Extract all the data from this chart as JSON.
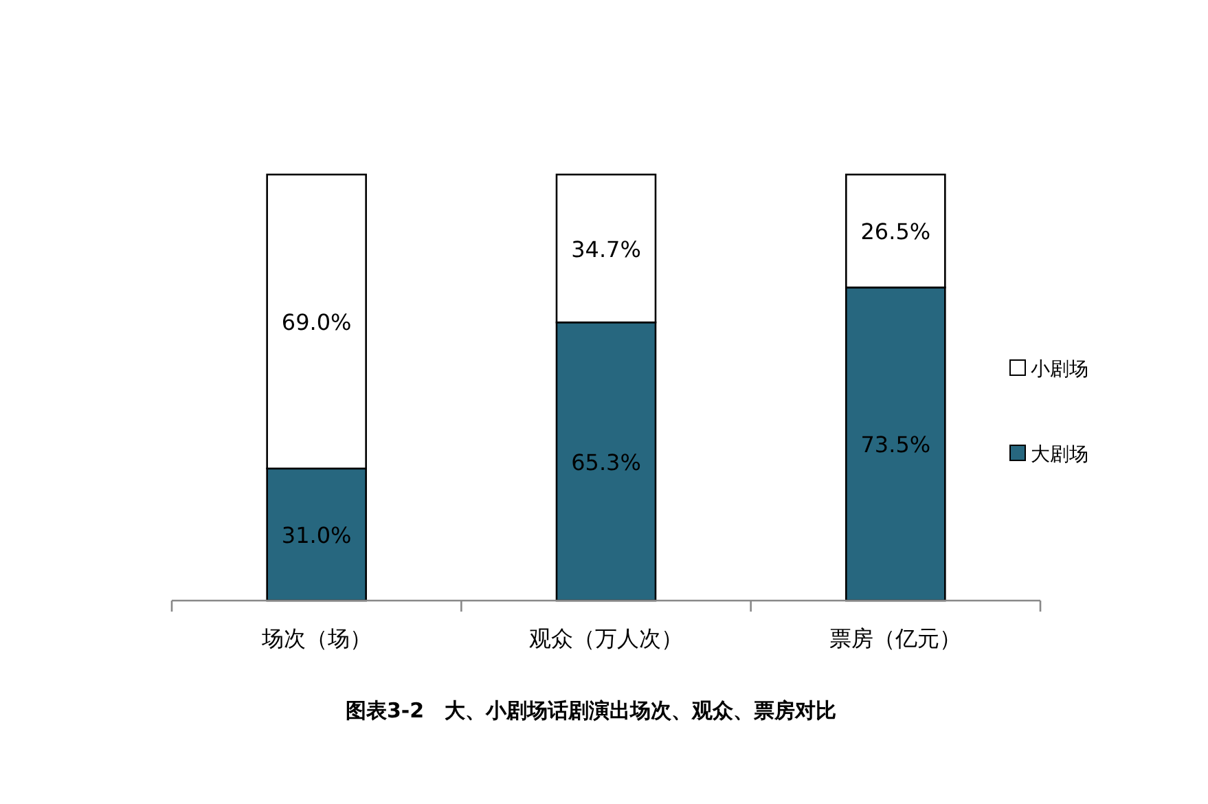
{
  "chart_data": {
    "type": "bar",
    "stacked": true,
    "title": "图表3-2　大、小剧场话剧演出场次、观众、票房对比",
    "categories": [
      "场次（场）",
      "观众（万人次）",
      "票房（亿元）"
    ],
    "ylim": [
      0,
      100
    ],
    "legend": "right",
    "series": [
      {
        "name": "大剧场",
        "color": "#27677f",
        "values": [
          31.0,
          65.3,
          73.5
        ],
        "value_labels": [
          "31.0%",
          "65.3%",
          "73.5%"
        ]
      },
      {
        "name": "小剧场",
        "color": "#ffffff",
        "values": [
          69.0,
          34.7,
          26.5
        ],
        "value_labels": [
          "69.0%",
          "34.7%",
          "26.5%"
        ]
      }
    ]
  }
}
